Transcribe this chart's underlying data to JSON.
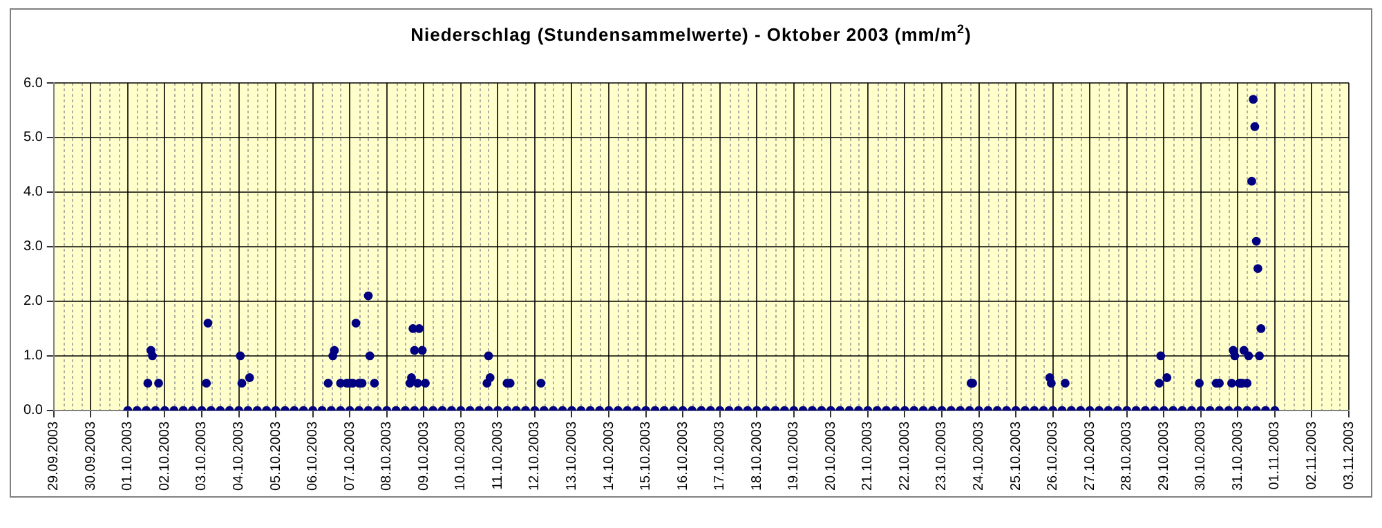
{
  "chart_data": {
    "type": "scatter",
    "title": "Niederschlag (Stundensammelwerte) - Oktober 2003 (mm/m$^{2}$)",
    "xlim": [
      "2003-09-29",
      "2003-11-03"
    ],
    "xticks": [
      {
        "value": "2003-09-29",
        "label": "29.09.2003"
      },
      {
        "value": "2003-09-30",
        "label": "30.09.2003"
      },
      {
        "value": "2003-10-01",
        "label": "01.10.2003"
      },
      {
        "value": "2003-10-02",
        "label": "02.10.2003"
      },
      {
        "value": "2003-10-03",
        "label": "03.10.2003"
      },
      {
        "value": "2003-10-04",
        "label": "04.10.2003"
      },
      {
        "value": "2003-10-05",
        "label": "05.10.2003"
      },
      {
        "value": "2003-10-06",
        "label": "06.10.2003"
      },
      {
        "value": "2003-10-07",
        "label": "07.10.2003"
      },
      {
        "value": "2003-10-08",
        "label": "08.10.2003"
      },
      {
        "value": "2003-10-09",
        "label": "09.10.2003"
      },
      {
        "value": "2003-10-10",
        "label": "10.10.2003"
      },
      {
        "value": "2003-10-11",
        "label": "11.10.2003"
      },
      {
        "value": "2003-10-12",
        "label": "12.10.2003"
      },
      {
        "value": "2003-10-13",
        "label": "13.10.2003"
      },
      {
        "value": "2003-10-14",
        "label": "14.10.2003"
      },
      {
        "value": "2003-10-15",
        "label": "15.10.2003"
      },
      {
        "value": "2003-10-16",
        "label": "16.10.2003"
      },
      {
        "value": "2003-10-17",
        "label": "17.10.2003"
      },
      {
        "value": "2003-10-18",
        "label": "18.10.2003"
      },
      {
        "value": "2003-10-19",
        "label": "19.10.2003"
      },
      {
        "value": "2003-10-20",
        "label": "20.10.2003"
      },
      {
        "value": "2003-10-21",
        "label": "21.10.2003"
      },
      {
        "value": "2003-10-22",
        "label": "22.10.2003"
      },
      {
        "value": "2003-10-23",
        "label": "23.10.2003"
      },
      {
        "value": "2003-10-24",
        "label": "24.10.2003"
      },
      {
        "value": "2003-10-25",
        "label": "25.10.2003"
      },
      {
        "value": "2003-10-26",
        "label": "26.10.2003"
      },
      {
        "value": "2003-10-27",
        "label": "27.10.2003"
      },
      {
        "value": "2003-10-28",
        "label": "28.10.2003"
      },
      {
        "value": "2003-10-29",
        "label": "29.10.2003"
      },
      {
        "value": "2003-10-30",
        "label": "30.10.2003"
      },
      {
        "value": "2003-10-31",
        "label": "31.10.2003"
      },
      {
        "value": "2003-11-01",
        "label": "01.11.2003"
      },
      {
        "value": "2003-11-02",
        "label": "02.11.2003"
      },
      {
        "value": "2003-11-03",
        "label": "03.11.2003"
      }
    ],
    "ylim": [
      0,
      6
    ],
    "yticks": [
      {
        "value": 0,
        "label": "0.0"
      },
      {
        "value": 1,
        "label": "1.0"
      },
      {
        "value": 2,
        "label": "2.0"
      },
      {
        "value": 3,
        "label": "3.0"
      },
      {
        "value": 4,
        "label": "4.0"
      },
      {
        "value": 5,
        "label": "5.0"
      },
      {
        "value": 6,
        "label": "6.0"
      }
    ],
    "grid": true,
    "legend": false,
    "marker": "circle",
    "series": [
      {
        "color": "#000080",
        "x": [
          "2003-10-01T00:00",
          "2003-10-01T06:00",
          "2003-10-01T12:00",
          "2003-10-01T18:00",
          "2003-10-02T00:00",
          "2003-10-02T06:00",
          "2003-10-02T12:00",
          "2003-10-02T18:00",
          "2003-10-03T00:00",
          "2003-10-03T06:00",
          "2003-10-03T12:00",
          "2003-10-03T18:00",
          "2003-10-04T00:00",
          "2003-10-04T06:00",
          "2003-10-04T12:00",
          "2003-10-04T18:00",
          "2003-10-05T00:00",
          "2003-10-05T06:00",
          "2003-10-05T12:00",
          "2003-10-05T18:00",
          "2003-10-06T00:00",
          "2003-10-06T06:00",
          "2003-10-06T12:00",
          "2003-10-06T18:00",
          "2003-10-07T00:00",
          "2003-10-07T06:00",
          "2003-10-07T12:00",
          "2003-10-07T18:00",
          "2003-10-08T00:00",
          "2003-10-08T06:00",
          "2003-10-08T12:00",
          "2003-10-08T18:00",
          "2003-10-09T00:00",
          "2003-10-09T06:00",
          "2003-10-09T12:00",
          "2003-10-09T18:00",
          "2003-10-10T00:00",
          "2003-10-10T06:00",
          "2003-10-10T12:00",
          "2003-10-10T18:00",
          "2003-10-11T00:00",
          "2003-10-11T06:00",
          "2003-10-11T12:00",
          "2003-10-11T18:00",
          "2003-10-12T00:00",
          "2003-10-12T06:00",
          "2003-10-12T12:00",
          "2003-10-12T18:00",
          "2003-10-13T00:00",
          "2003-10-13T06:00",
          "2003-10-13T12:00",
          "2003-10-13T18:00",
          "2003-10-14T00:00",
          "2003-10-14T06:00",
          "2003-10-14T12:00",
          "2003-10-14T18:00",
          "2003-10-15T00:00",
          "2003-10-15T06:00",
          "2003-10-15T12:00",
          "2003-10-15T18:00",
          "2003-10-16T00:00",
          "2003-10-16T06:00",
          "2003-10-16T12:00",
          "2003-10-16T18:00",
          "2003-10-17T00:00",
          "2003-10-17T06:00",
          "2003-10-17T12:00",
          "2003-10-17T18:00",
          "2003-10-18T00:00",
          "2003-10-18T06:00",
          "2003-10-18T12:00",
          "2003-10-18T18:00",
          "2003-10-19T00:00",
          "2003-10-19T06:00",
          "2003-10-19T12:00",
          "2003-10-19T18:00",
          "2003-10-20T00:00",
          "2003-10-20T06:00",
          "2003-10-20T12:00",
          "2003-10-20T18:00",
          "2003-10-21T00:00",
          "2003-10-21T06:00",
          "2003-10-21T12:00",
          "2003-10-21T18:00",
          "2003-10-22T00:00",
          "2003-10-22T06:00",
          "2003-10-22T12:00",
          "2003-10-22T18:00",
          "2003-10-23T00:00",
          "2003-10-23T06:00",
          "2003-10-23T12:00",
          "2003-10-23T18:00",
          "2003-10-24T00:00",
          "2003-10-24T06:00",
          "2003-10-24T12:00",
          "2003-10-24T18:00",
          "2003-10-25T00:00",
          "2003-10-25T06:00",
          "2003-10-25T12:00",
          "2003-10-25T18:00",
          "2003-10-26T00:00",
          "2003-10-26T06:00",
          "2003-10-26T12:00",
          "2003-10-26T18:00",
          "2003-10-27T00:00",
          "2003-10-27T06:00",
          "2003-10-27T12:00",
          "2003-10-27T18:00",
          "2003-10-28T00:00",
          "2003-10-28T06:00",
          "2003-10-28T12:00",
          "2003-10-28T18:00",
          "2003-10-29T00:00",
          "2003-10-29T06:00",
          "2003-10-29T12:00",
          "2003-10-29T18:00",
          "2003-10-30T00:00",
          "2003-10-30T06:00",
          "2003-10-30T12:00",
          "2003-10-30T18:00",
          "2003-10-31T00:00",
          "2003-10-31T06:00",
          "2003-10-31T12:00",
          "2003-10-31T18:00",
          "2003-11-01T00:00"
        ],
        "values": [
          0,
          0,
          0,
          0,
          0,
          0,
          0,
          0,
          0,
          0,
          0,
          0,
          0,
          0,
          0,
          0,
          0,
          0,
          0,
          0,
          0,
          0,
          0,
          0,
          0,
          0,
          0,
          0,
          0,
          0,
          0,
          0,
          0,
          0,
          0,
          0,
          0,
          0,
          0,
          0,
          0,
          0,
          0,
          0,
          0,
          0,
          0,
          0,
          0,
          0,
          0,
          0,
          0,
          0,
          0,
          0,
          0,
          0,
          0,
          0,
          0,
          0,
          0,
          0,
          0,
          0,
          0,
          0,
          0,
          0,
          0,
          0,
          0,
          0,
          0,
          0,
          0,
          0,
          0,
          0,
          0,
          0,
          0,
          0,
          0,
          0,
          0,
          0,
          0,
          0,
          0,
          0,
          0,
          0,
          0,
          0,
          0,
          0,
          0,
          0,
          0,
          0,
          0,
          0,
          0,
          0,
          0,
          0,
          0,
          0,
          0,
          0,
          0,
          0,
          0,
          0,
          0,
          0,
          0,
          0,
          0,
          0,
          0,
          0,
          0
        ]
      },
      {
        "color": "#000080",
        "x": [
          "2003-10-01T13:00",
          "2003-10-01T15:00",
          "2003-10-01T16:00",
          "2003-10-01T20:00",
          "2003-10-03T03:00",
          "2003-10-03T04:00",
          "2003-10-04T01:00",
          "2003-10-04T02:00",
          "2003-10-04T07:00",
          "2003-10-06T10:00",
          "2003-10-06T13:00",
          "2003-10-06T14:00",
          "2003-10-06T18:00",
          "2003-10-06T22:00",
          "2003-10-07T00:00",
          "2003-10-07T02:00",
          "2003-10-07T04:00",
          "2003-10-07T06:00",
          "2003-10-07T08:00",
          "2003-10-07T12:00",
          "2003-10-07T13:00",
          "2003-10-07T16:00",
          "2003-10-08T15:00",
          "2003-10-08T16:00",
          "2003-10-08T17:00",
          "2003-10-08T18:00",
          "2003-10-08T20:00",
          "2003-10-08T21:00",
          "2003-10-08T23:00",
          "2003-10-09T01:00",
          "2003-10-10T17:00",
          "2003-10-10T18:00",
          "2003-10-10T19:00",
          "2003-10-11T06:00",
          "2003-10-11T08:00",
          "2003-10-12T04:00",
          "2003-10-23T19:00",
          "2003-10-23T20:00",
          "2003-10-25T22:00",
          "2003-10-25T23:00",
          "2003-10-26T08:00",
          "2003-10-28T21:00",
          "2003-10-28T22:00",
          "2003-10-29T02:00",
          "2003-10-29T23:00",
          "2003-10-30T10:00",
          "2003-10-30T12:00",
          "2003-10-30T20:00",
          "2003-10-30T21:00",
          "2003-10-30T22:00",
          "2003-10-31T01:00",
          "2003-10-31T02:00",
          "2003-10-31T03:00",
          "2003-10-31T04:00",
          "2003-10-31T06:00",
          "2003-10-31T07:00",
          "2003-10-31T09:00",
          "2003-10-31T10:00",
          "2003-10-31T11:00",
          "2003-10-31T12:00",
          "2003-10-31T13:00",
          "2003-10-31T14:00",
          "2003-10-31T15:00"
        ],
        "values": [
          0.5,
          1.1,
          1.0,
          0.5,
          0.5,
          1.6,
          1.0,
          0.5,
          0.6,
          0.5,
          1.0,
          1.1,
          0.5,
          0.5,
          0.5,
          0.5,
          1.6,
          0.5,
          0.5,
          2.1,
          1.0,
          0.5,
          0.5,
          0.6,
          1.5,
          1.1,
          0.5,
          1.5,
          1.1,
          0.5,
          0.5,
          1.0,
          0.6,
          0.5,
          0.5,
          0.5,
          0.5,
          0.5,
          0.6,
          0.5,
          0.5,
          0.5,
          1.0,
          0.6,
          0.5,
          0.5,
          0.5,
          0.5,
          1.1,
          1.0,
          0.5,
          0.5,
          0.5,
          1.1,
          0.5,
          1.0,
          4.2,
          5.7,
          5.2,
          3.1,
          2.6,
          1.0,
          1.5
        ]
      }
    ]
  }
}
